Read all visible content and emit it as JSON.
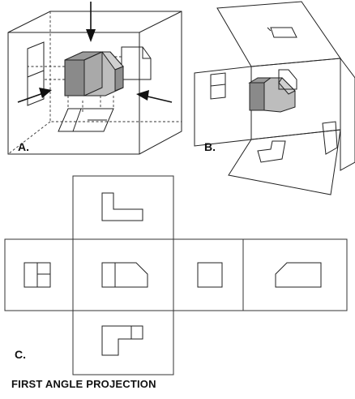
{
  "figure_labels": {
    "a": "A.",
    "b": "B.",
    "c": "C."
  },
  "caption": "FIRST ANGLE PROJECTION"
}
